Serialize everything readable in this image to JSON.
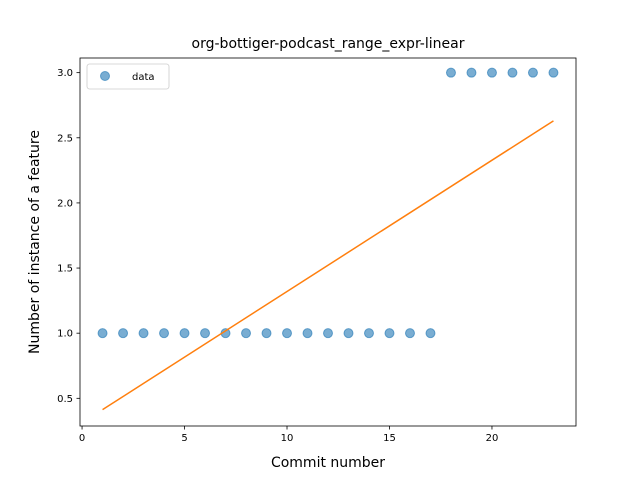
{
  "chart_data": {
    "type": "scatter",
    "title": "org-bottiger-podcast_range_expr-linear",
    "xlabel": "Commit number",
    "ylabel": "Number of instance of a feature",
    "xlim": [
      -0.1,
      24.1
    ],
    "ylim": [
      0.2875,
      3.1125
    ],
    "xticks": [
      0,
      5,
      10,
      15,
      20
    ],
    "xtick_labels": [
      "0",
      "5",
      "10",
      "15",
      "20"
    ],
    "yticks": [
      0.5,
      1.0,
      1.5,
      2.0,
      2.5,
      3.0
    ],
    "ytick_labels": [
      "0.5",
      "1.0",
      "1.5",
      "2.0",
      "2.5",
      "3.0"
    ],
    "grid": false,
    "legend_position": "top-left",
    "series": [
      {
        "name": "data",
        "kind": "scatter",
        "color": "#1f77b4",
        "x": [
          1,
          2,
          3,
          4,
          5,
          6,
          7,
          8,
          9,
          10,
          11,
          12,
          13,
          14,
          15,
          16,
          17,
          18,
          19,
          20,
          21,
          22,
          23
        ],
        "y": [
          1,
          1,
          1,
          1,
          1,
          1,
          1,
          1,
          1,
          1,
          1,
          1,
          1,
          1,
          1,
          1,
          1,
          3,
          3,
          3,
          3,
          3,
          3
        ]
      },
      {
        "kind": "line",
        "color": "#ff7f0e",
        "x": [
          1,
          23
        ],
        "y": [
          0.413,
          2.63
        ]
      }
    ]
  }
}
